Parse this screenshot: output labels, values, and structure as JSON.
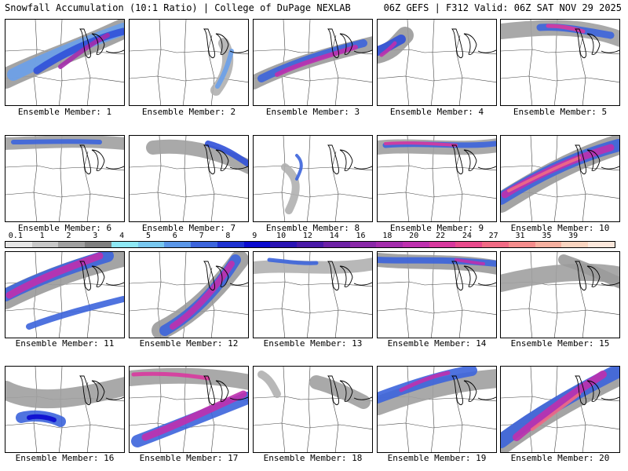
{
  "header": {
    "left": "Snowfall Accumulation (10:1 Ratio) | College of DuPage NEXLAB",
    "right": "06Z GEFS | F312 Valid: 06Z SAT NOV 29 2025"
  },
  "colorbar": {
    "labels": [
      "0.1",
      "1",
      "2",
      "3",
      "4",
      "5",
      "6",
      "7",
      "8",
      "9",
      "10",
      "12",
      "14",
      "16",
      "18",
      "20",
      "22",
      "24",
      "27",
      "31",
      "35",
      "39"
    ],
    "colors": [
      "#e6e6e6",
      "#c8c8c8",
      "#a0a0a0",
      "#7f7f7f",
      "#8ee8f4",
      "#78c8f0",
      "#5a96e8",
      "#3c64dc",
      "#1e32d2",
      "#0a0ad0",
      "#2a14b4",
      "#4a1aa8",
      "#6e22a6",
      "#8a28a8",
      "#a42cac",
      "#be30ae",
      "#d8389e",
      "#e84a8c",
      "#f06a84",
      "#f48c8c",
      "#f6b0a0",
      "#f9d4c0",
      "#fce8dc"
    ]
  },
  "members": [
    {
      "label": "Ensemble Member: 1"
    },
    {
      "label": "Ensemble Member: 2"
    },
    {
      "label": "Ensemble Member: 3"
    },
    {
      "label": "Ensemble Member: 4"
    },
    {
      "label": "Ensemble Member: 5"
    },
    {
      "label": "Ensemble Member: 6"
    },
    {
      "label": "Ensemble Member: 7"
    },
    {
      "label": "Ensemble Member: 8"
    },
    {
      "label": "Ensemble Member: 9"
    },
    {
      "label": "Ensemble Member: 10"
    },
    {
      "label": "Ensemble Member: 11"
    },
    {
      "label": "Ensemble Member: 12"
    },
    {
      "label": "Ensemble Member: 13"
    },
    {
      "label": "Ensemble Member: 14"
    },
    {
      "label": "Ensemble Member: 15"
    },
    {
      "label": "Ensemble Member: 16"
    },
    {
      "label": "Ensemble Member: 17"
    },
    {
      "label": "Ensemble Member: 18"
    },
    {
      "label": "Ensemble Member: 19"
    },
    {
      "label": "Ensemble Member: 20"
    }
  ]
}
